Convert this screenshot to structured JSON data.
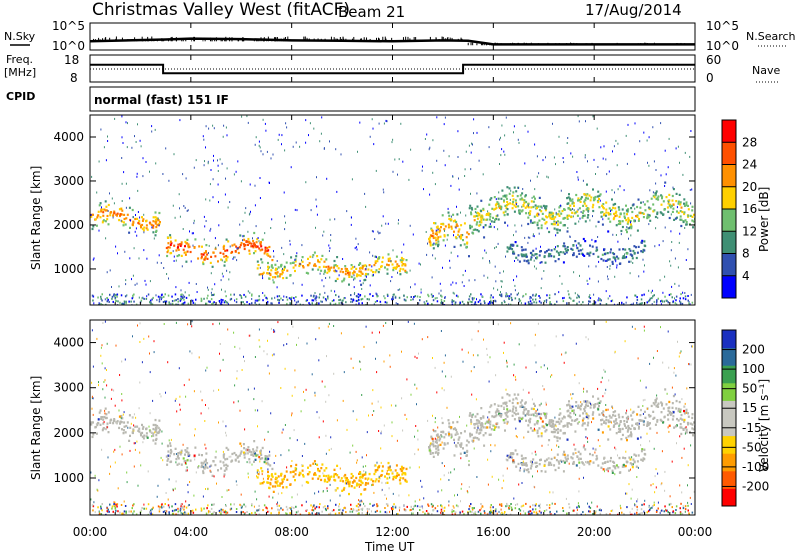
{
  "header": {
    "station": "Christmas Valley West (fitACF)",
    "beam": "Beam 21",
    "date": "17/Aug/2014"
  },
  "labels": {
    "nsky": "N.Sky",
    "nsearch": "N.Search",
    "freq_line1": "Freq.",
    "freq_line2": "[MHz]",
    "nave": "Nave",
    "cpid": "CPID",
    "cpid_value": "normal (fast) 151 IF",
    "x_axis": "Time UT",
    "y_axis_power": "Slant Range [km]",
    "y_axis_velocity": "Slant Range [km]",
    "cbar_power": "Power [dB]",
    "cbar_velocity": "Velocity [m s⁻¹]"
  },
  "colors": {
    "power_scale": [
      "#0000ff",
      "#3050b0",
      "#3f8f74",
      "#6fbf6f",
      "#ffd000",
      "#ff9000",
      "#ff5000",
      "#ff0000"
    ],
    "velocity_scale": [
      "#ff0000",
      "#ff5a00",
      "#ff9c00",
      "#ffd200",
      "#c8c8c0",
      "#c8c8c0",
      "#80d040",
      "#3aa050",
      "#2a6a9a",
      "#1a30c0"
    ],
    "ground_scatter": "#b8b8b0"
  },
  "chart_data": [
    {
      "type": "line",
      "name": "noise",
      "ylabel_left": "N.Sky",
      "ylabel_right": "N.Search",
      "left_ticks": [
        "10^5",
        "10^0"
      ],
      "right_ticks": [
        "10^5",
        "10^0"
      ],
      "x_range_hours": [
        0,
        24
      ],
      "series": [
        {
          "x_hours": [
            0,
            3,
            4,
            6,
            8,
            10,
            12,
            14,
            15,
            16,
            20,
            24
          ],
          "values_log10": [
            1.3,
            1.7,
            1.9,
            1.8,
            1.5,
            1.4,
            1.3,
            1.5,
            1.4,
            0.6,
            0.6,
            0.6
          ]
        }
      ]
    },
    {
      "type": "line",
      "name": "frequency",
      "ylabel_left": "[MHz]",
      "ylabel_right": "Nave",
      "left_ticks": [
        "18",
        "8"
      ],
      "right_ticks": [
        "60",
        "0"
      ],
      "x_range_hours": [
        0,
        24
      ],
      "series": [
        {
          "name": "Freq.",
          "x_hours": [
            0,
            2.9,
            2.9,
            14.8,
            14.8,
            24
          ],
          "values": [
            16.5,
            16.5,
            11.8,
            11.8,
            16.5,
            16.5
          ]
        },
        {
          "name": "Nave",
          "x_hours": [
            0,
            24
          ],
          "values": [
            30,
            30
          ]
        }
      ]
    },
    {
      "type": "heatmap",
      "name": "power",
      "xlabel": "Time UT",
      "ylabel": "Slant Range [km]",
      "x_range_hours": [
        0,
        24
      ],
      "y_range_km": [
        180,
        4500
      ],
      "yticks": [
        1000,
        2000,
        3000,
        4000
      ],
      "colorbar": {
        "label": "Power [dB]",
        "ticks": [
          4,
          8,
          12,
          16,
          20,
          24,
          28
        ],
        "range": [
          0,
          32
        ]
      },
      "echo_regions": [
        {
          "t_start": 0.0,
          "t_end": 2.8,
          "range_low": 1800,
          "range_high": 2550,
          "peak_db": 24
        },
        {
          "t_start": 3.0,
          "t_end": 7.2,
          "range_low": 1100,
          "range_high": 1800,
          "peak_db": 28
        },
        {
          "t_start": 6.6,
          "t_end": 12.6,
          "range_low": 700,
          "range_high": 1400,
          "peak_db": 22
        },
        {
          "t_start": 13.4,
          "t_end": 15.0,
          "range_low": 1200,
          "range_high": 2300,
          "peak_db": 22
        },
        {
          "t_start": 15.0,
          "t_end": 24.0,
          "range_low": 1800,
          "range_high": 2900,
          "peak_db": 18
        },
        {
          "t_start": 16.5,
          "t_end": 22.0,
          "range_low": 1100,
          "range_high": 1700,
          "peak_db": 10
        }
      ]
    },
    {
      "type": "heatmap",
      "name": "velocity",
      "xlabel": "Time UT",
      "ylabel": "Slant Range [km]",
      "x_range_hours": [
        0,
        24
      ],
      "y_range_km": [
        180,
        4500
      ],
      "yticks": [
        1000,
        2000,
        3000,
        4000
      ],
      "xticks": [
        "00:00",
        "04:00",
        "08:00",
        "12:00",
        "16:00",
        "20:00",
        "00:00"
      ],
      "colorbar": {
        "label": "Velocity [m s⁻¹]",
        "ticks": [
          -200,
          -100,
          -50,
          -15,
          15,
          50,
          100,
          200
        ]
      }
    }
  ]
}
